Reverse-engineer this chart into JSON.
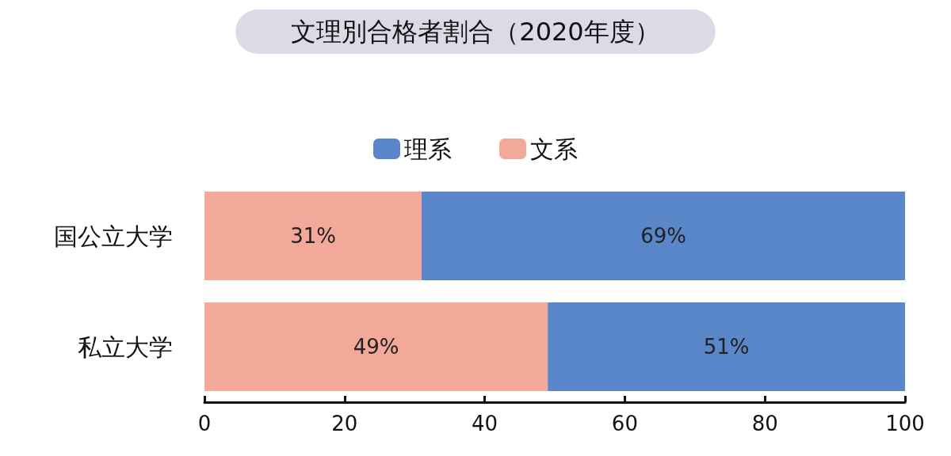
{
  "chart_data": {
    "type": "bar",
    "orientation": "horizontal",
    "stacked": true,
    "title": "文理別合格者割合（2020年度）",
    "categories": [
      "国公立大学",
      "私立大学"
    ],
    "series": [
      {
        "name": "文系",
        "color": "#f2a999",
        "values": [
          31,
          49
        ],
        "value_labels": [
          "31%",
          "49%"
        ]
      },
      {
        "name": "理系",
        "color": "#5a87c9",
        "values": [
          69,
          51
        ],
        "value_labels": [
          "69%",
          "51%"
        ]
      }
    ],
    "xlim": [
      0,
      100
    ],
    "xticks": [
      0,
      20,
      40,
      60,
      80,
      100
    ],
    "grid": false,
    "legend": "top"
  }
}
